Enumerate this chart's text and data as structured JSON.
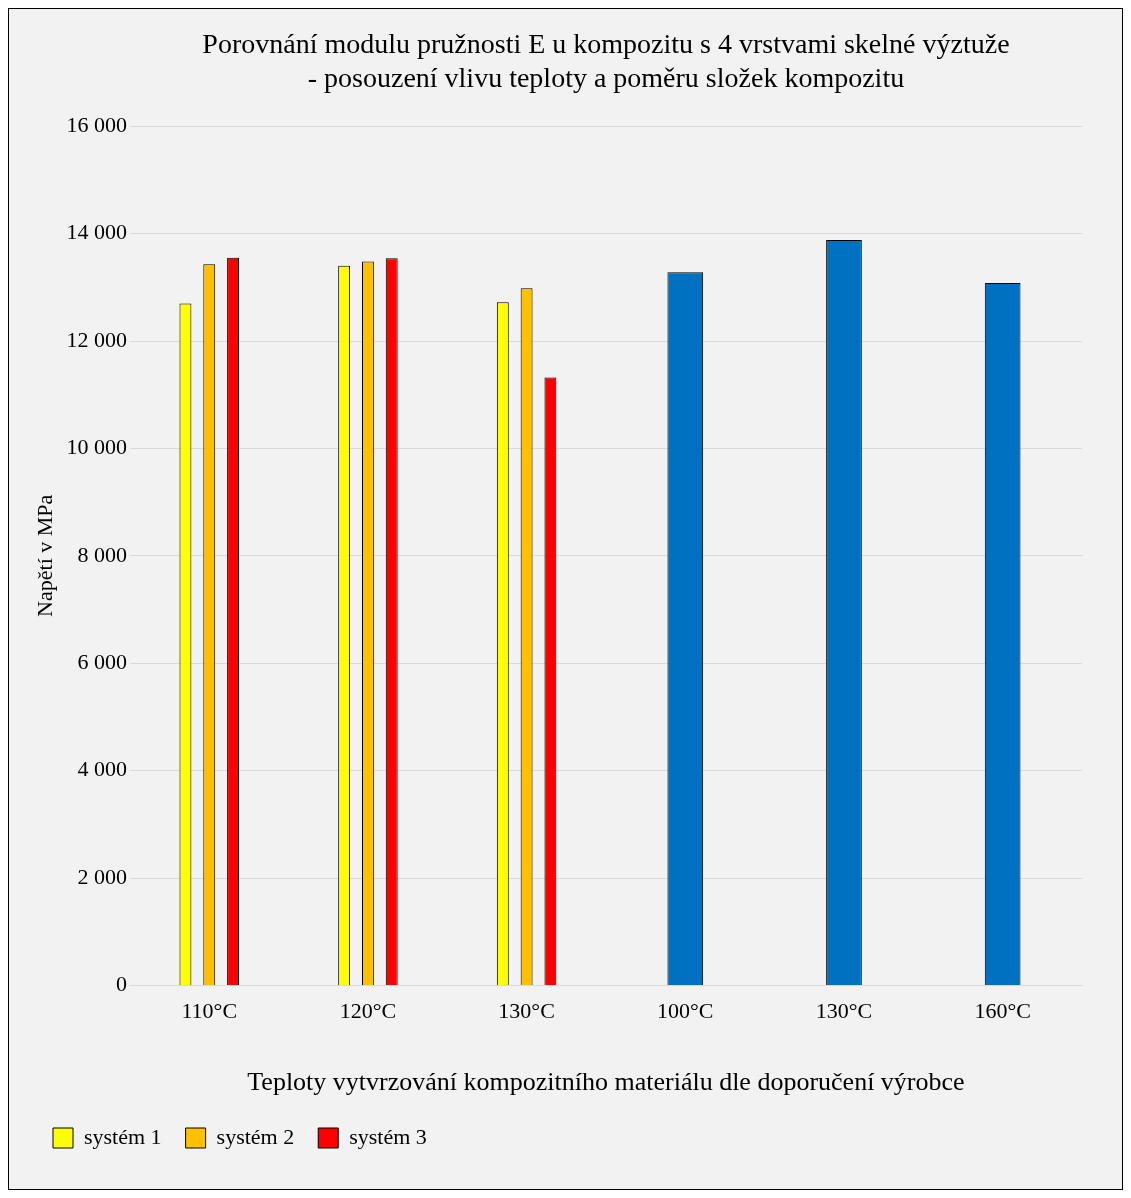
{
  "chart_data": {
    "type": "bar",
    "title": "Porovnání modulu pružnosti E u kompozitu s 4 vrstvami skelné výztuže - posouzení vlivu teploty a poměru složek kompozitu",
    "xlabel": "Teploty vytvrzování kompozitního materiálu dle doporučení výrobce",
    "ylabel": "Napětí v MPa",
    "categories": [
      "110°C",
      "120°C",
      "130°C",
      "100°C",
      "130°C",
      "160°C"
    ],
    "series": [
      {
        "name": "systém 1",
        "color": "#ffff00",
        "values": [
          12700,
          13400,
          12720,
          null,
          null,
          null
        ]
      },
      {
        "name": "systém 2",
        "color": "#ffc000",
        "values": [
          13430,
          13480,
          12980,
          null,
          null,
          null
        ]
      },
      {
        "name": "systém 3",
        "color": "#ff0000",
        "values": [
          13550,
          13540,
          11320,
          null,
          null,
          null
        ]
      },
      {
        "color": "#0070c0",
        "values": [
          null,
          null,
          null,
          13280,
          13880,
          13080
        ]
      }
    ],
    "ylim": [
      0,
      16000
    ],
    "yticks": [
      {
        "value": 0,
        "label": "0"
      },
      {
        "value": 2000,
        "label": "2 000"
      },
      {
        "value": 4000,
        "label": "4 000"
      },
      {
        "value": 6000,
        "label": "6 000"
      },
      {
        "value": 8000,
        "label": "8 000"
      },
      {
        "value": 10000,
        "label": "10 000"
      },
      {
        "value": 12000,
        "label": "12 000"
      },
      {
        "value": 14000,
        "label": "14 000"
      },
      {
        "value": 16000,
        "label": "16 000"
      }
    ],
    "grid": "y",
    "legend": "bottom left"
  }
}
